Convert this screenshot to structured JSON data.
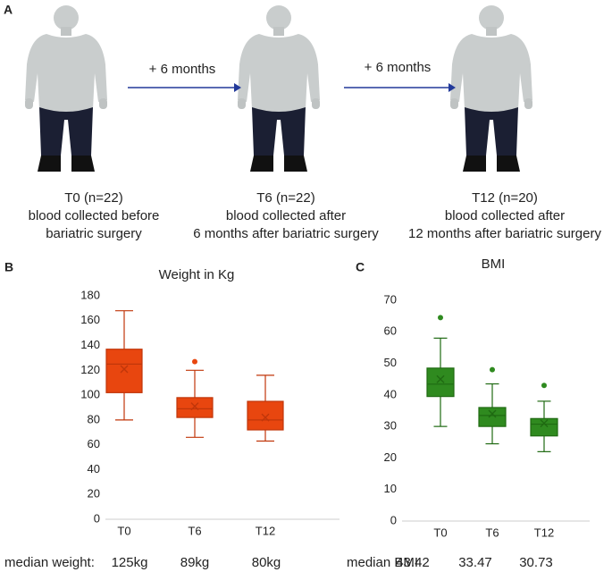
{
  "panel_a": {
    "label": "A",
    "arrows": [
      "+ 6 months",
      "+ 6 months"
    ],
    "timepoints": [
      {
        "title": "T0 (n=22)",
        "lines": [
          "blood collected before",
          "bariatric surgery"
        ]
      },
      {
        "title": "T6 (n=22)",
        "lines": [
          "blood collected after",
          "6 months after bariatric surgery"
        ]
      },
      {
        "title": "T12 (n=20)",
        "lines": [
          "blood collected after",
          "12 months after bariatric surgery"
        ]
      }
    ]
  },
  "chart_data": [
    {
      "type": "box",
      "panel_label": "B",
      "title": "Weight in Kg",
      "categories": [
        "T0",
        "T6",
        "T12"
      ],
      "color": "#e8460f",
      "edge_color": "#c0360a",
      "boxes": [
        {
          "min": 80,
          "q1": 102,
          "median": 125,
          "q3": 137,
          "max": 168,
          "mean": 121,
          "outliers": []
        },
        {
          "min": 66,
          "q1": 82,
          "median": 89,
          "q3": 98,
          "max": 120,
          "mean": 91,
          "outliers": [
            127
          ]
        },
        {
          "min": 63,
          "q1": 72,
          "median": 80,
          "q3": 95,
          "max": 116,
          "mean": 82,
          "outliers": []
        }
      ],
      "median_labels": [
        "125kg",
        "89kg",
        "80kg"
      ],
      "footer_label": "median weight:",
      "ylim": [
        0,
        180
      ],
      "yticks": [
        0,
        20,
        40,
        60,
        80,
        100,
        120,
        140,
        160,
        180
      ]
    },
    {
      "type": "box",
      "panel_label": "C",
      "title": "BMI",
      "categories": [
        "T0",
        "T6",
        "T12"
      ],
      "color": "#2f8a1f",
      "edge_color": "#1f6a12",
      "boxes": [
        {
          "min": 30,
          "q1": 39.5,
          "median": 43.42,
          "q3": 48.5,
          "max": 58,
          "mean": 45,
          "outliers": [
            64.5
          ]
        },
        {
          "min": 24.5,
          "q1": 30,
          "median": 33.47,
          "q3": 36,
          "max": 43.5,
          "mean": 34,
          "outliers": [
            48
          ]
        },
        {
          "min": 22,
          "q1": 27,
          "median": 30.73,
          "q3": 32.5,
          "max": 38,
          "mean": 31,
          "outliers": [
            43
          ]
        }
      ],
      "footer_label": "median BMI",
      "ylim": [
        0,
        70
      ],
      "yticks": [
        0,
        10,
        20,
        30,
        40,
        50,
        60,
        70
      ]
    }
  ]
}
